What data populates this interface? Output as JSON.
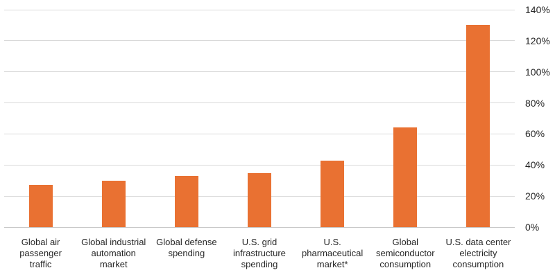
{
  "chart_data": {
    "type": "bar",
    "title": "",
    "xlabel": "",
    "ylabel": "",
    "categories": [
      "Global air passenger traffic",
      "Global industrial automation market",
      "Global defense spending",
      "U.S. grid infrastructure spending",
      "U.S. pharmaceutical market*",
      "Global semiconductor consumption",
      "U.S. data center electricity consumption"
    ],
    "category_lines": [
      [
        "Global air",
        "passenger",
        "traffic"
      ],
      [
        "Global industrial",
        "automation",
        "market"
      ],
      [
        "Global defense",
        "spending"
      ],
      [
        "U.S. grid",
        "infrastructure",
        "spending"
      ],
      [
        "U.S.",
        "pharmaceutical",
        "market*"
      ],
      [
        "Global",
        "semiconductor",
        "consumption"
      ],
      [
        "U.S. data center",
        "electricity",
        "consumption"
      ]
    ],
    "values": [
      27,
      30,
      33,
      35,
      43,
      64,
      130
    ],
    "unit": "%",
    "ylim": [
      0,
      140
    ],
    "y_tick_step": 20,
    "y_ticks": [
      "0%",
      "20%",
      "40%",
      "60%",
      "80%",
      "100%",
      "120%",
      "140%"
    ],
    "axis_side": "right",
    "grid": "horizontal",
    "legend": "none",
    "colors": {
      "bar": "#E97132",
      "gridline": "#D9D9D9",
      "axis_line": "#C9C9C9",
      "text": "#262626",
      "background": "#FFFFFF"
    }
  }
}
